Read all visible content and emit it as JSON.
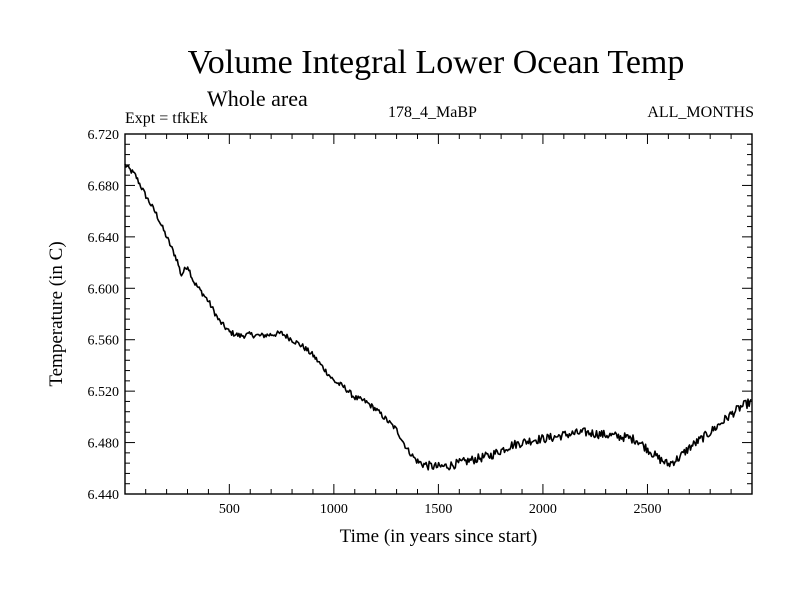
{
  "chart_data": {
    "type": "line",
    "title": "Volume Integral Lower Ocean Temp",
    "subtitle": "Whole area",
    "annotations": {
      "experiment": "Expt = tfkEk",
      "period": "178_4_MaBP",
      "months": "ALL_MONTHS"
    },
    "xlabel": "Time (in years since start)",
    "ylabel": "Temperature (in C)",
    "xlim": [
      1,
      3000
    ],
    "ylim": [
      6.44,
      6.72
    ],
    "xticks": [
      500,
      1000,
      1500,
      2000,
      2500
    ],
    "xtick_labels": [
      "500",
      "1000",
      "1500",
      "2000",
      "2500"
    ],
    "yticks": [
      6.44,
      6.48,
      6.52,
      6.56,
      6.6,
      6.64,
      6.68,
      6.72
    ],
    "ytick_labels": [
      "6.440",
      "6.480",
      "6.520",
      "6.560",
      "6.600",
      "6.640",
      "6.680",
      "6.720"
    ],
    "grid": false,
    "series": [
      {
        "x": [
          1,
          50,
          100,
          150,
          200,
          250,
          270,
          300,
          330,
          400,
          450,
          500,
          550,
          600,
          650,
          700,
          750,
          800,
          850,
          900,
          950,
          1000,
          1050,
          1100,
          1150,
          1200,
          1250,
          1300,
          1350,
          1400,
          1450,
          1500,
          1550,
          1600,
          1650,
          1700,
          1750,
          1800,
          1850,
          1900,
          1950,
          2000,
          2050,
          2100,
          2150,
          2200,
          2250,
          2300,
          2350,
          2400,
          2450,
          2500,
          2550,
          2600,
          2650,
          2700,
          2750,
          2800,
          2850,
          2900,
          2950,
          3000
        ],
        "y": [
          6.696,
          6.688,
          6.672,
          6.658,
          6.64,
          6.622,
          6.61,
          6.618,
          6.605,
          6.59,
          6.575,
          6.566,
          6.563,
          6.564,
          6.563,
          6.564,
          6.565,
          6.56,
          6.555,
          6.548,
          6.538,
          6.528,
          6.523,
          6.515,
          6.512,
          6.506,
          6.498,
          6.49,
          6.475,
          6.465,
          6.462,
          6.461,
          6.462,
          6.464,
          6.466,
          6.468,
          6.47,
          6.474,
          6.478,
          6.48,
          6.482,
          6.483,
          6.484,
          6.486,
          6.487,
          6.488,
          6.487,
          6.486,
          6.485,
          6.484,
          6.482,
          6.475,
          6.468,
          6.463,
          6.468,
          6.476,
          6.482,
          6.488,
          6.495,
          6.502,
          6.508,
          6.512
        ]
      }
    ]
  }
}
